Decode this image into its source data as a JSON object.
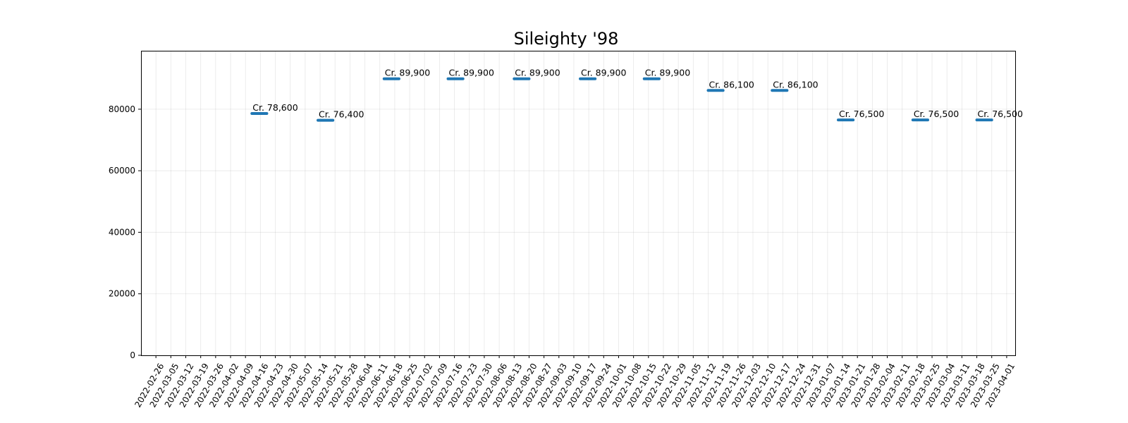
{
  "chart_data": {
    "type": "line",
    "title": "Sileighty '98",
    "xlabel": "",
    "ylabel": "",
    "ylim": [
      0,
      99000
    ],
    "yticks": [
      0,
      20000,
      40000,
      60000,
      80000
    ],
    "grid": true,
    "line_color": "#1f77b4",
    "x_ticks": [
      "2022-02-26",
      "2022-03-05",
      "2022-03-12",
      "2022-03-19",
      "2022-03-26",
      "2022-04-02",
      "2022-04-09",
      "2022-04-16",
      "2022-04-23",
      "2022-04-30",
      "2022-05-07",
      "2022-05-14",
      "2022-05-21",
      "2022-05-28",
      "2022-06-04",
      "2022-06-11",
      "2022-06-18",
      "2022-06-25",
      "2022-07-02",
      "2022-07-09",
      "2022-07-16",
      "2022-07-23",
      "2022-07-30",
      "2022-08-06",
      "2022-08-13",
      "2022-08-20",
      "2022-08-27",
      "2022-09-03",
      "2022-09-10",
      "2022-09-17",
      "2022-09-24",
      "2022-10-01",
      "2022-10-08",
      "2022-10-15",
      "2022-10-22",
      "2022-10-29",
      "2022-11-05",
      "2022-11-12",
      "2022-11-19",
      "2022-11-26",
      "2022-12-03",
      "2022-12-10",
      "2022-12-17",
      "2022-12-24",
      "2022-12-31",
      "2023-01-07",
      "2023-01-14",
      "2023-01-21",
      "2023-01-28",
      "2023-02-04",
      "2023-02-11",
      "2023-02-18",
      "2023-02-25",
      "2023-03-04",
      "2023-03-11",
      "2023-03-18",
      "2023-03-25",
      "2023-04-01"
    ],
    "series": [
      {
        "segments": [
          {
            "start": "2022-04-12",
            "end": "2022-04-19",
            "value": 78600,
            "label": "Cr. 78,600"
          },
          {
            "start": "2022-05-13",
            "end": "2022-05-20",
            "value": 76400,
            "label": "Cr. 76,400"
          },
          {
            "start": "2022-06-13",
            "end": "2022-06-20",
            "value": 89900,
            "label": "Cr. 89,900"
          },
          {
            "start": "2022-07-13",
            "end": "2022-07-20",
            "value": 89900,
            "label": "Cr. 89,900"
          },
          {
            "start": "2022-08-13",
            "end": "2022-08-20",
            "value": 89900,
            "label": "Cr. 89,900"
          },
          {
            "start": "2022-09-13",
            "end": "2022-09-20",
            "value": 89900,
            "label": "Cr. 89,900"
          },
          {
            "start": "2022-10-13",
            "end": "2022-10-20",
            "value": 89900,
            "label": "Cr. 89,900"
          },
          {
            "start": "2022-11-12",
            "end": "2022-11-19",
            "value": 86100,
            "label": "Cr. 86,100"
          },
          {
            "start": "2022-12-12",
            "end": "2022-12-19",
            "value": 86100,
            "label": "Cr. 86,100"
          },
          {
            "start": "2023-01-12",
            "end": "2023-01-19",
            "value": 76500,
            "label": "Cr. 76,500"
          },
          {
            "start": "2023-02-16",
            "end": "2023-02-23",
            "value": 76500,
            "label": "Cr. 76,500"
          },
          {
            "start": "2023-03-18",
            "end": "2023-03-25",
            "value": 76500,
            "label": "Cr. 76,500"
          }
        ]
      }
    ]
  }
}
